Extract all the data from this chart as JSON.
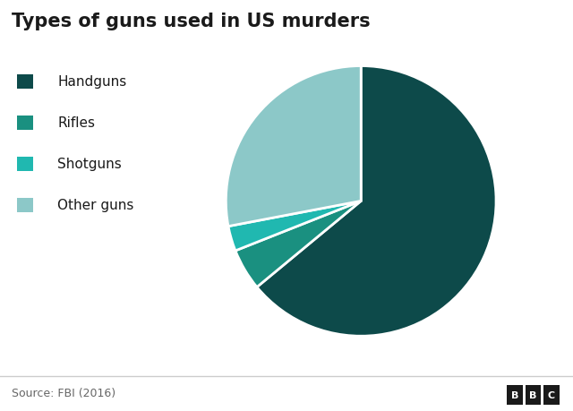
{
  "title": "Types of guns used in US murders",
  "labels": [
    "Handguns",
    "Rifles",
    "Shotguns",
    "Other guns"
  ],
  "values": [
    64.0,
    5.0,
    3.0,
    28.0
  ],
  "colors": [
    "#0d4a4a",
    "#1a9080",
    "#20b8b0",
    "#8cc8c8"
  ],
  "legend_labels": [
    "Handguns",
    "Rifles",
    "Shotguns",
    "Other guns"
  ],
  "source_text": "Source: FBI (2016)",
  "bbc_text": "BBC",
  "background_color": "#ffffff",
  "title_fontsize": 15,
  "legend_fontsize": 11,
  "source_fontsize": 9,
  "wedge_edge_color": "#ffffff",
  "wedge_linewidth": 2.0,
  "startangle": 90
}
